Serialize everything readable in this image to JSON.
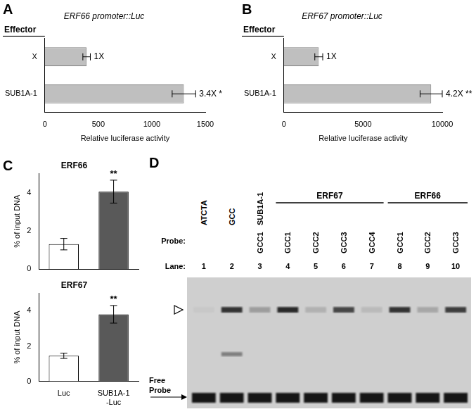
{
  "chart_data": [
    {
      "panel": "A",
      "type": "bar",
      "orientation": "horizontal",
      "title": "ERF66 promoter::Luc",
      "category_header": "Effector",
      "categories": [
        "X",
        "SUB1A-1"
      ],
      "values": [
        390,
        1300
      ],
      "errors": [
        35,
        110
      ],
      "annotations": [
        {
          "index": 0,
          "text": "1X"
        },
        {
          "index": 1,
          "text": "3.4X *"
        }
      ],
      "xlabel": "Relative luciferase activity",
      "xlim": [
        0,
        1500
      ],
      "xticks": [
        0,
        500,
        1000,
        1500
      ],
      "color": "#bfbfbf",
      "grid": false
    },
    {
      "panel": "B",
      "type": "bar",
      "orientation": "horizontal",
      "title": "ERF67 promoter::Luc",
      "category_header": "Effector",
      "categories": [
        "X",
        "SUB1A-1"
      ],
      "values": [
        2200,
        9300
      ],
      "errors": [
        250,
        700
      ],
      "annotations": [
        {
          "index": 0,
          "text": "1X"
        },
        {
          "index": 1,
          "text": "4.2X **"
        }
      ],
      "xlabel": "Relative luciferase activity",
      "xlim": [
        0,
        10000
      ],
      "xticks": [
        0,
        5000,
        10000
      ],
      "color": "#bfbfbf",
      "grid": false
    },
    {
      "panel": "C",
      "type": "bar",
      "title": "ERF66",
      "categories": [
        "Luc",
        [
          "SUB1A-1",
          "-Luc"
        ]
      ],
      "values": [
        1.3,
        4.05
      ],
      "errors": [
        0.3,
        0.6
      ],
      "annotations": [
        {
          "index": 1,
          "text": "**"
        }
      ],
      "ylabel": "% of input DNA",
      "ylim": [
        0,
        5
      ],
      "yticks": [
        0,
        2,
        4
      ],
      "colors": [
        "#ffffff",
        "#595959"
      ],
      "grid": false,
      "tick_labels": "y"
    },
    {
      "type": "bar",
      "title": "ERF67",
      "categories": [
        "Luc",
        [
          "SUB1A-1",
          "-Luc"
        ]
      ],
      "values": [
        1.45,
        3.8
      ],
      "errors": [
        0.15,
        0.5
      ],
      "annotations": [
        {
          "index": 1,
          "text": "**"
        }
      ],
      "ylabel": "% of input DNA",
      "ylim": [
        0,
        5
      ],
      "yticks": [
        0,
        2,
        4
      ],
      "colors": [
        "#ffffff",
        "#595959"
      ],
      "grid": false
    }
  ],
  "gel": {
    "panel": "D",
    "probe_label": "Probe:",
    "lane_label": "Lane:",
    "lanes": [
      1,
      2,
      3,
      4,
      5,
      6,
      7,
      8,
      9,
      10
    ],
    "probes": [
      null,
      null,
      "GCC1",
      "GCC1",
      "GCC2",
      "GCC3",
      "GCC4",
      "GCC1",
      "GCC2",
      "GCC3"
    ],
    "groups": [
      {
        "text": "ATCTA",
        "lanes": [
          1,
          1
        ]
      },
      {
        "text": "GCC",
        "lanes": [
          2,
          2
        ]
      },
      {
        "text": "SUB1A-1",
        "lanes": [
          3,
          3
        ]
      },
      {
        "text": "ERF67",
        "lanes": [
          4,
          7
        ]
      },
      {
        "text": "ERF66",
        "lanes": [
          8,
          10
        ]
      }
    ],
    "shifted_band": [
      0.03,
      0.8,
      0.25,
      0.85,
      0.15,
      0.7,
      0.1,
      0.8,
      0.2,
      0.75
    ],
    "lower_band": [
      0,
      0.4,
      0,
      0,
      0,
      0,
      0,
      0,
      0,
      0
    ],
    "free_probe": [
      0.95,
      0.95,
      0.95,
      0.95,
      0.95,
      0.95,
      0.95,
      0.95,
      0.95,
      0.95
    ],
    "free_probe_label": [
      "Free",
      "Probe"
    ]
  }
}
